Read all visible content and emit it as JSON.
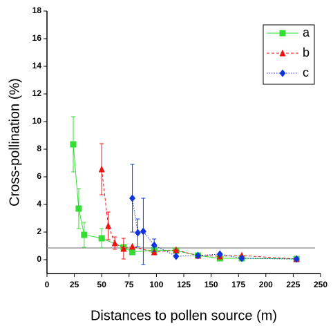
{
  "chart_data": {
    "type": "line",
    "x_label": "Distances to pollen source (m)",
    "y_label": "Cross-pollination (%)",
    "xlim": [
      0,
      250
    ],
    "xticks": [
      0,
      25,
      50,
      75,
      100,
      125,
      150,
      175,
      200,
      225,
      250
    ],
    "ylim": [
      -1,
      18
    ],
    "yticks": [
      0,
      2,
      4,
      6,
      8,
      10,
      12,
      14,
      16,
      18
    ],
    "reference_line": 0.85,
    "reference_color": "#999999",
    "legend": "upper right",
    "series": [
      {
        "name": "a",
        "color": "#33dd33",
        "marker": "square",
        "line_style": "solid",
        "x": [
          24,
          29,
          34,
          50,
          70,
          78,
          98,
          118,
          138,
          158,
          178,
          228
        ],
        "values": [
          8.35,
          3.7,
          1.8,
          1.55,
          0.9,
          0.55,
          0.7,
          0.65,
          0.3,
          0.1,
          0.1,
          0.05
        ],
        "errors": [
          2.0,
          1.45,
          0.9,
          0.7,
          null,
          null,
          null,
          null,
          null,
          null,
          null,
          null
        ]
      },
      {
        "name": "b",
        "color": "#ee1111",
        "marker": "triangle",
        "line_style": "dashed",
        "x": [
          50,
          56,
          62,
          70,
          78,
          98,
          118,
          138,
          158,
          178,
          228
        ],
        "values": [
          6.55,
          2.45,
          1.2,
          0.8,
          0.95,
          0.55,
          0.7,
          0.3,
          0.25,
          0.3,
          0.05
        ],
        "errors": [
          1.85,
          1.0,
          0.45,
          0.75,
          null,
          null,
          null,
          null,
          null,
          null,
          null
        ]
      },
      {
        "name": "c",
        "color": "#1133dd",
        "marker": "diamond",
        "line_style": "dotted",
        "x": [
          78,
          83,
          88,
          98,
          118,
          138,
          158,
          178,
          228
        ],
        "values": [
          4.45,
          1.95,
          2.05,
          1.05,
          0.25,
          0.3,
          0.4,
          0.1,
          0.05
        ],
        "errors": [
          2.45,
          1.0,
          2.4,
          0.45,
          null,
          null,
          null,
          null,
          null
        ]
      }
    ]
  }
}
